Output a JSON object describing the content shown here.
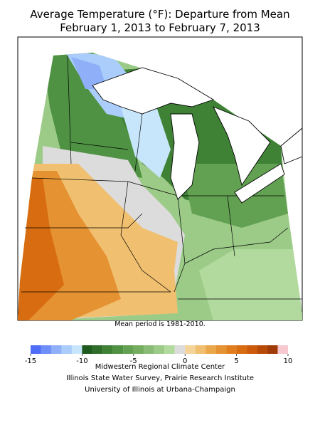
{
  "title": [
    "Average Temperature (°F): Departure from Mean",
    "February 1, 2013 to February 7, 2013"
  ],
  "note": "Mean period is 1981-2010.",
  "colorbar": {
    "lim": [
      -15,
      10
    ],
    "ticks": [
      -15,
      -10,
      -5,
      0,
      5,
      10
    ],
    "bins": [
      -15,
      -14,
      -13,
      -12,
      -11,
      -10,
      -9,
      -8,
      -7,
      -6,
      -5,
      -4,
      -3,
      -2,
      -1,
      0,
      1,
      2,
      3,
      4,
      5,
      6,
      7,
      8,
      9,
      10
    ],
    "colors": [
      "#4f6ef7",
      "#6f8ef7",
      "#8faff9",
      "#aacdfb",
      "#c8e6fb",
      "#1e5a1e",
      "#2e6e2a",
      "#3f8236",
      "#4f9244",
      "#62a052",
      "#74ad60",
      "#88bc74",
      "#9ccb88",
      "#b2da9e",
      "#dcdcdc",
      "#f5d49a",
      "#f0c070",
      "#eaa84a",
      "#e59232",
      "#e07e1e",
      "#d86c10",
      "#cc5a0a",
      "#b84a08",
      "#a03a06",
      "#f8c8d0"
    ]
  },
  "credits": [
    "Midwestern Regional Climate Center",
    "Illinois State Water Survey, Prairie Research Institute",
    "University of Illinois at Urbana-Champaign"
  ]
}
